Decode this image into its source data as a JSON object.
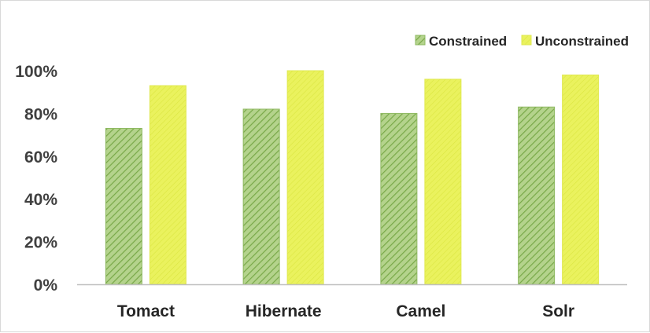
{
  "chart_data": {
    "type": "bar",
    "categories": [
      "Tomact",
      "Hibernate",
      "Camel",
      "Solr"
    ],
    "series": [
      {
        "name": "Constrained",
        "values": [
          0.73,
          0.82,
          0.8,
          0.83
        ],
        "color": "#8db860"
      },
      {
        "name": "Unconstrained",
        "values": [
          0.93,
          1.0,
          0.96,
          0.98
        ],
        "color": "#e8f05a"
      }
    ],
    "yticks": [
      "0%",
      "20%",
      "40%",
      "60%",
      "80%",
      "100%"
    ],
    "ylim": [
      0,
      1
    ],
    "grid": false,
    "legend_position": "top-right"
  }
}
